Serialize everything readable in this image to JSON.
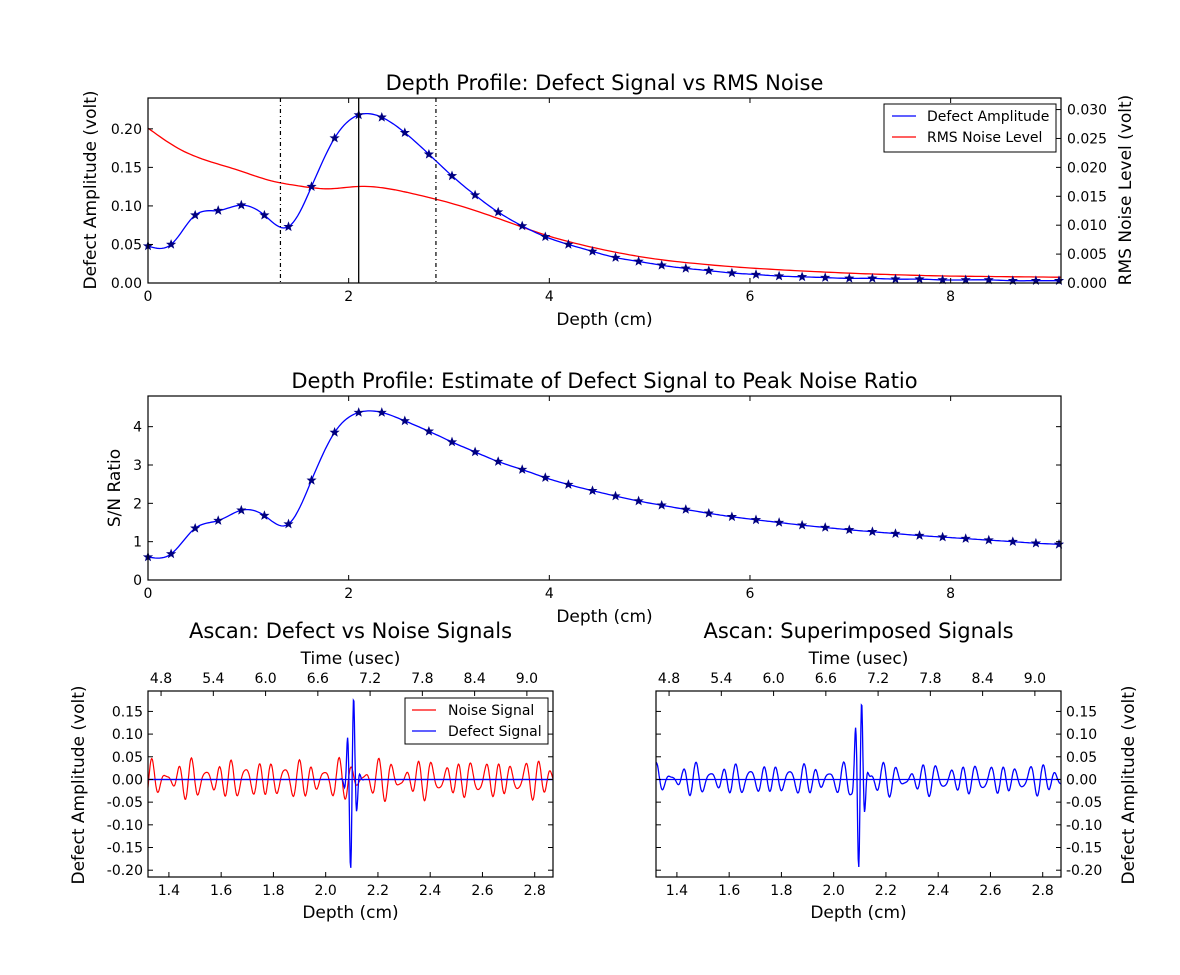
{
  "chart_data": [
    {
      "type": "line",
      "title": "Depth Profile: Defect Signal vs RMS Noise",
      "xlabel": "Depth (cm)",
      "ylabel": "Defect Amplitude (volt)",
      "y2label": "RMS Noise Level (volt)",
      "xlim": [
        0,
        9.1
      ],
      "ylim": [
        0,
        0.24
      ],
      "y2lim": [
        0,
        0.032
      ],
      "xticks": [
        "0",
        "2",
        "4",
        "6",
        "8"
      ],
      "yticks": [
        "0.00",
        "0.05",
        "0.10",
        "0.15",
        "0.20"
      ],
      "y2ticks": [
        "0.000",
        "0.005",
        "0.010",
        "0.015",
        "0.020",
        "0.025",
        "0.030"
      ],
      "legend": "top-right",
      "vlines": {
        "gate_start": 1.32,
        "gate_center": 2.1,
        "gate_end": 2.87
      },
      "series": [
        {
          "name": "Defect Amplitude",
          "color": "#0000ff",
          "marker": "star",
          "axis": "left",
          "x": [
            0,
            0.23,
            0.47,
            0.7,
            0.93,
            1.16,
            1.4,
            1.63,
            1.86,
            2.1,
            2.33,
            2.56,
            2.8,
            3.03,
            3.26,
            3.49,
            3.73,
            3.96,
            4.19,
            4.43,
            4.66,
            4.89,
            5.12,
            5.36,
            5.59,
            5.82,
            6.06,
            6.29,
            6.52,
            6.75,
            6.99,
            7.22,
            7.45,
            7.69,
            7.92,
            8.15,
            8.38,
            8.62,
            8.85,
            9.08
          ],
          "y": [
            0.048,
            0.05,
            0.088,
            0.094,
            0.101,
            0.088,
            0.073,
            0.125,
            0.188,
            0.218,
            0.215,
            0.195,
            0.167,
            0.139,
            0.114,
            0.092,
            0.074,
            0.06,
            0.05,
            0.041,
            0.033,
            0.028,
            0.023,
            0.019,
            0.016,
            0.013,
            0.011,
            0.009,
            0.008,
            0.007,
            0.006,
            0.006,
            0.005,
            0.005,
            0.004,
            0.004,
            0.004,
            0.003,
            0.003,
            0.003
          ]
        },
        {
          "name": "RMS Noise Level",
          "color": "#ff0000",
          "marker": "none",
          "axis": "right",
          "x": [
            0,
            0.3,
            0.6,
            0.9,
            1.2,
            1.5,
            1.8,
            2.1,
            2.4,
            2.7,
            3.0,
            3.5,
            4.0,
            4.5,
            5.0,
            5.5,
            6.0,
            6.5,
            7.0,
            7.5,
            8.0,
            8.5,
            9.1
          ],
          "y": [
            0.0268,
            0.0233,
            0.0211,
            0.0195,
            0.0178,
            0.0168,
            0.0163,
            0.0167,
            0.0163,
            0.0152,
            0.0139,
            0.0111,
            0.0081,
            0.0059,
            0.0043,
            0.0033,
            0.0026,
            0.0021,
            0.0017,
            0.0014,
            0.0012,
            0.0011,
            0.001
          ]
        }
      ]
    },
    {
      "type": "line",
      "title": "Depth Profile: Estimate of Defect Signal to Peak Noise Ratio",
      "xlabel": "Depth (cm)",
      "ylabel": "S/N Ratio",
      "xlim": [
        0,
        9.1
      ],
      "ylim": [
        0,
        4.8
      ],
      "xticks": [
        "0",
        "2",
        "4",
        "6",
        "8"
      ],
      "yticks": [
        "0",
        "1",
        "2",
        "3",
        "4"
      ],
      "series": [
        {
          "name": "",
          "color": "#0000ff",
          "marker": "star",
          "x": [
            0,
            0.23,
            0.47,
            0.7,
            0.93,
            1.16,
            1.4,
            1.63,
            1.86,
            2.1,
            2.33,
            2.56,
            2.8,
            3.03,
            3.26,
            3.49,
            3.73,
            3.96,
            4.19,
            4.43,
            4.66,
            4.89,
            5.12,
            5.36,
            5.59,
            5.82,
            6.06,
            6.29,
            6.52,
            6.75,
            6.99,
            7.22,
            7.45,
            7.69,
            7.92,
            8.15,
            8.38,
            8.62,
            8.85,
            9.08
          ],
          "y": [
            0.6,
            0.68,
            1.35,
            1.55,
            1.82,
            1.68,
            1.46,
            2.6,
            3.85,
            4.37,
            4.37,
            4.15,
            3.88,
            3.6,
            3.34,
            3.09,
            2.88,
            2.67,
            2.49,
            2.33,
            2.19,
            2.06,
            1.95,
            1.84,
            1.74,
            1.65,
            1.57,
            1.5,
            1.43,
            1.37,
            1.31,
            1.26,
            1.21,
            1.16,
            1.12,
            1.08,
            1.04,
            1.0,
            0.96,
            0.93
          ]
        }
      ]
    },
    {
      "type": "line",
      "title": "Ascan: Defect vs Noise Signals",
      "xlabel": "Depth (cm)",
      "x2label": "Time (usec)",
      "ylabel": "Defect Amplitude (volt)",
      "xlim": [
        1.32,
        2.87
      ],
      "ylim": [
        -0.215,
        0.195
      ],
      "xticks": [
        "1.4",
        "1.6",
        "1.8",
        "2.0",
        "2.2",
        "2.4",
        "2.6",
        "2.8"
      ],
      "x2ticks": [
        "4.8",
        "5.4",
        "6.0",
        "6.6",
        "7.2",
        "7.8",
        "8.4",
        "9.0"
      ],
      "yticks": [
        "0.15",
        "0.10",
        "0.05",
        "0.00",
        "-0.05",
        "-0.10",
        "-0.15",
        "-0.20"
      ],
      "legend": "top-right",
      "series": [
        {
          "name": "Noise Signal",
          "color": "#ff0000",
          "kind": "noise",
          "peak": 0.05
        },
        {
          "name": "Defect Signal",
          "color": "#0000ff",
          "kind": "pulse",
          "center": 2.1,
          "peak": 0.2,
          "trough": -0.215
        }
      ]
    },
    {
      "type": "line",
      "title": "Ascan: Superimposed Signals",
      "xlabel": "Depth (cm)",
      "x2label": "Time (usec)",
      "ylabel": "Defect Amplitude (volt)",
      "xlim": [
        1.32,
        2.87
      ],
      "ylim": [
        -0.215,
        0.195
      ],
      "xticks": [
        "1.4",
        "1.6",
        "1.8",
        "2.0",
        "2.2",
        "2.4",
        "2.6",
        "2.8"
      ],
      "x2ticks": [
        "4.8",
        "5.4",
        "6.0",
        "6.6",
        "7.2",
        "7.8",
        "8.4",
        "9.0"
      ],
      "yticks": [
        "0.15",
        "0.10",
        "0.05",
        "0.00",
        "-0.05",
        "-0.10",
        "-0.15",
        "-0.20"
      ],
      "series": [
        {
          "name": "",
          "color": "#0000ff",
          "kind": "superimposed",
          "center": 2.1,
          "peak": 0.2,
          "trough": -0.215
        }
      ]
    }
  ]
}
